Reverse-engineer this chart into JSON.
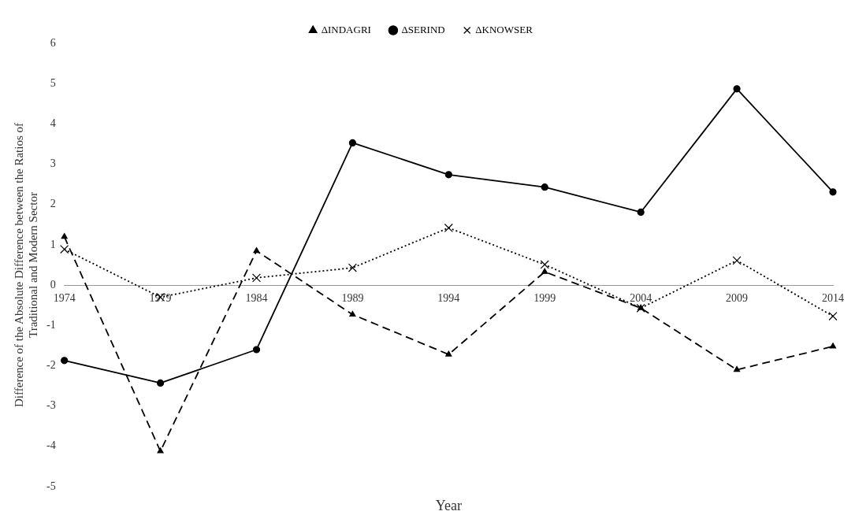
{
  "chart_data": {
    "type": "line",
    "xlabel": "Year",
    "ylabel": "Difference of the Absolute Difference between the Ratios of\nTraditional and Modern Sector",
    "categories": [
      "1974",
      "1979",
      "1984",
      "1989",
      "1994",
      "1999",
      "2004",
      "2009",
      "2014"
    ],
    "series": [
      {
        "name": "ΔINDAGRI",
        "color": "#000000",
        "marker": "triangle",
        "line_style": "dashed",
        "values": [
          1.2,
          -4.12,
          0.85,
          -0.73,
          -1.72,
          0.33,
          -0.57,
          -2.1,
          -1.52
        ]
      },
      {
        "name": "ΔSERIND",
        "color": "#000000",
        "marker": "circle",
        "line_style": "solid",
        "values": [
          -1.87,
          -2.43,
          -1.6,
          3.53,
          2.74,
          2.43,
          1.81,
          4.87,
          2.31
        ]
      },
      {
        "name": "ΔKNOWSER",
        "color": "#000000",
        "marker": "cross",
        "line_style": "dotted",
        "values": [
          0.89,
          -0.3,
          0.18,
          0.43,
          1.42,
          0.51,
          -0.57,
          0.61,
          -0.77
        ]
      }
    ],
    "ylim": [
      -5,
      6
    ],
    "yticks": [
      -5,
      -4,
      -3,
      -2,
      -1,
      0,
      1,
      2,
      3,
      4,
      5,
      6
    ],
    "grid": false,
    "legend": "top"
  }
}
